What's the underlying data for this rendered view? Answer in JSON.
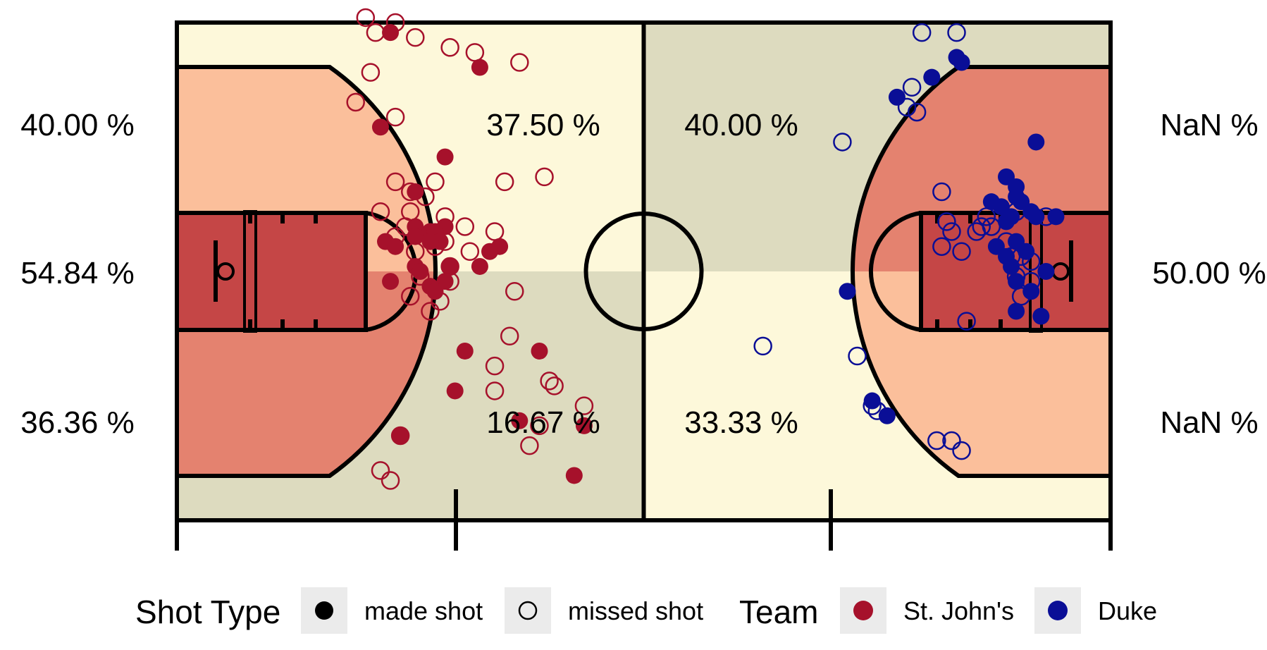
{
  "chart_data": {
    "type": "scatter",
    "title": "",
    "court_zones": {
      "left_half": {
        "team": "St. John's",
        "top": {
          "paint_label": "40.00 %",
          "mid_label": "37.50 %"
        },
        "middle": {
          "paint_label": "54.84 %"
        },
        "bottom": {
          "paint_label": "36.36 %",
          "mid_label": "16.67 %"
        }
      },
      "right_half": {
        "team": "Duke",
        "top": {
          "paint_label": "NaN %",
          "mid_label": "40.00 %"
        },
        "middle": {
          "paint_label": "50.00 %"
        },
        "bottom": {
          "paint_label": "NaN %",
          "mid_label": "33.33 %"
        }
      }
    },
    "colors": {
      "court_light": "#fdf8da",
      "court_dark": "#dddbbf",
      "zone_light": "#fbbf9b",
      "zone_mid": "#e4826f",
      "zone_dark": "#c54646",
      "st_johns": "#a6112b",
      "duke": "#0a0e96"
    },
    "legend": {
      "shot_type_title": "Shot Type",
      "made_label": "made shot",
      "missed_label": "missed shot",
      "team_title": "Team",
      "team1_label": "St. John's",
      "team2_label": "Duke"
    },
    "series": [
      {
        "name": "St. John's",
        "made": [
          [
            43,
            98
          ],
          [
            61,
            91
          ],
          [
            41,
            79
          ],
          [
            54,
            73
          ],
          [
            48,
            66
          ],
          [
            48,
            59
          ],
          [
            54,
            59
          ],
          [
            51,
            58
          ],
          [
            52,
            58
          ],
          [
            48,
            57
          ],
          [
            53,
            56
          ],
          [
            51,
            56
          ],
          [
            42,
            56
          ],
          [
            44,
            55
          ],
          [
            65,
            55
          ],
          [
            63,
            54
          ],
          [
            61,
            51
          ],
          [
            55,
            51
          ],
          [
            48,
            51
          ],
          [
            49,
            50
          ],
          [
            43,
            48
          ],
          [
            54,
            48
          ],
          [
            51,
            47
          ],
          [
            52,
            46
          ],
          [
            73,
            34
          ],
          [
            58,
            34
          ],
          [
            56,
            26
          ],
          [
            69,
            20
          ],
          [
            82,
            19
          ],
          [
            45,
            17
          ],
          [
            80,
            9
          ]
        ],
        "missed": [
          [
            38,
            101
          ],
          [
            44,
            100
          ],
          [
            40,
            98
          ],
          [
            48,
            97
          ],
          [
            55,
            95
          ],
          [
            60,
            94
          ],
          [
            69,
            92
          ],
          [
            39,
            90
          ],
          [
            36,
            84
          ],
          [
            44,
            81
          ],
          [
            74,
            69
          ],
          [
            44,
            68
          ],
          [
            52,
            68
          ],
          [
            66,
            68
          ],
          [
            47,
            66
          ],
          [
            50,
            65
          ],
          [
            41,
            62
          ],
          [
            47,
            62
          ],
          [
            54,
            61
          ],
          [
            46,
            59
          ],
          [
            58,
            59
          ],
          [
            64,
            58
          ],
          [
            44,
            57
          ],
          [
            54,
            56
          ],
          [
            52,
            55
          ],
          [
            59,
            54
          ],
          [
            48,
            54
          ],
          [
            55,
            51
          ],
          [
            49,
            49
          ],
          [
            55,
            48
          ],
          [
            68,
            46
          ],
          [
            47,
            45
          ],
          [
            53,
            44
          ],
          [
            51,
            42
          ],
          [
            67,
            37
          ],
          [
            64,
            31
          ],
          [
            75,
            28
          ],
          [
            76,
            27
          ],
          [
            64,
            26
          ],
          [
            82,
            23
          ],
          [
            73,
            19
          ],
          [
            45,
            17
          ],
          [
            71,
            15
          ],
          [
            41,
            10
          ],
          [
            43,
            8
          ]
        ]
      },
      {
        "name": "Duke",
        "made": [
          [
            157,
            93
          ],
          [
            158,
            92
          ],
          [
            152,
            89
          ],
          [
            145,
            85
          ],
          [
            173,
            76
          ],
          [
            167,
            69
          ],
          [
            169,
            67
          ],
          [
            169,
            65
          ],
          [
            164,
            64
          ],
          [
            170,
            64
          ],
          [
            166,
            63
          ],
          [
            168,
            61
          ],
          [
            172,
            62
          ],
          [
            173,
            61
          ],
          [
            167,
            60
          ],
          [
            177,
            61
          ],
          [
            169,
            56
          ],
          [
            171,
            54
          ],
          [
            165,
            55
          ],
          [
            167,
            53
          ],
          [
            168,
            51
          ],
          [
            175,
            50
          ],
          [
            169,
            48
          ],
          [
            172,
            46
          ],
          [
            169,
            42
          ],
          [
            174,
            41
          ],
          [
            135,
            46
          ],
          [
            140,
            24
          ],
          [
            143,
            21
          ]
        ],
        "missed": [
          [
            150,
            98
          ],
          [
            157,
            98
          ],
          [
            148,
            87
          ],
          [
            147,
            83
          ],
          [
            149,
            82
          ],
          [
            134,
            76
          ],
          [
            154,
            66
          ],
          [
            163,
            61
          ],
          [
            169,
            62
          ],
          [
            175,
            61
          ],
          [
            164,
            59
          ],
          [
            162,
            59
          ],
          [
            155,
            60
          ],
          [
            161,
            58
          ],
          [
            156,
            58
          ],
          [
            154,
            55
          ],
          [
            167,
            56
          ],
          [
            168,
            53
          ],
          [
            170,
            53
          ],
          [
            169,
            49
          ],
          [
            158,
            54
          ],
          [
            172,
            52
          ],
          [
            172,
            48
          ],
          [
            170,
            45
          ],
          [
            159,
            40
          ],
          [
            118,
            35
          ],
          [
            137,
            33
          ],
          [
            140,
            23
          ],
          [
            141,
            22
          ],
          [
            153,
            16
          ],
          [
            156,
            16
          ],
          [
            158,
            14
          ]
        ]
      }
    ],
    "xlim": [
      0,
      188
    ],
    "ylim": [
      0,
      100
    ]
  }
}
